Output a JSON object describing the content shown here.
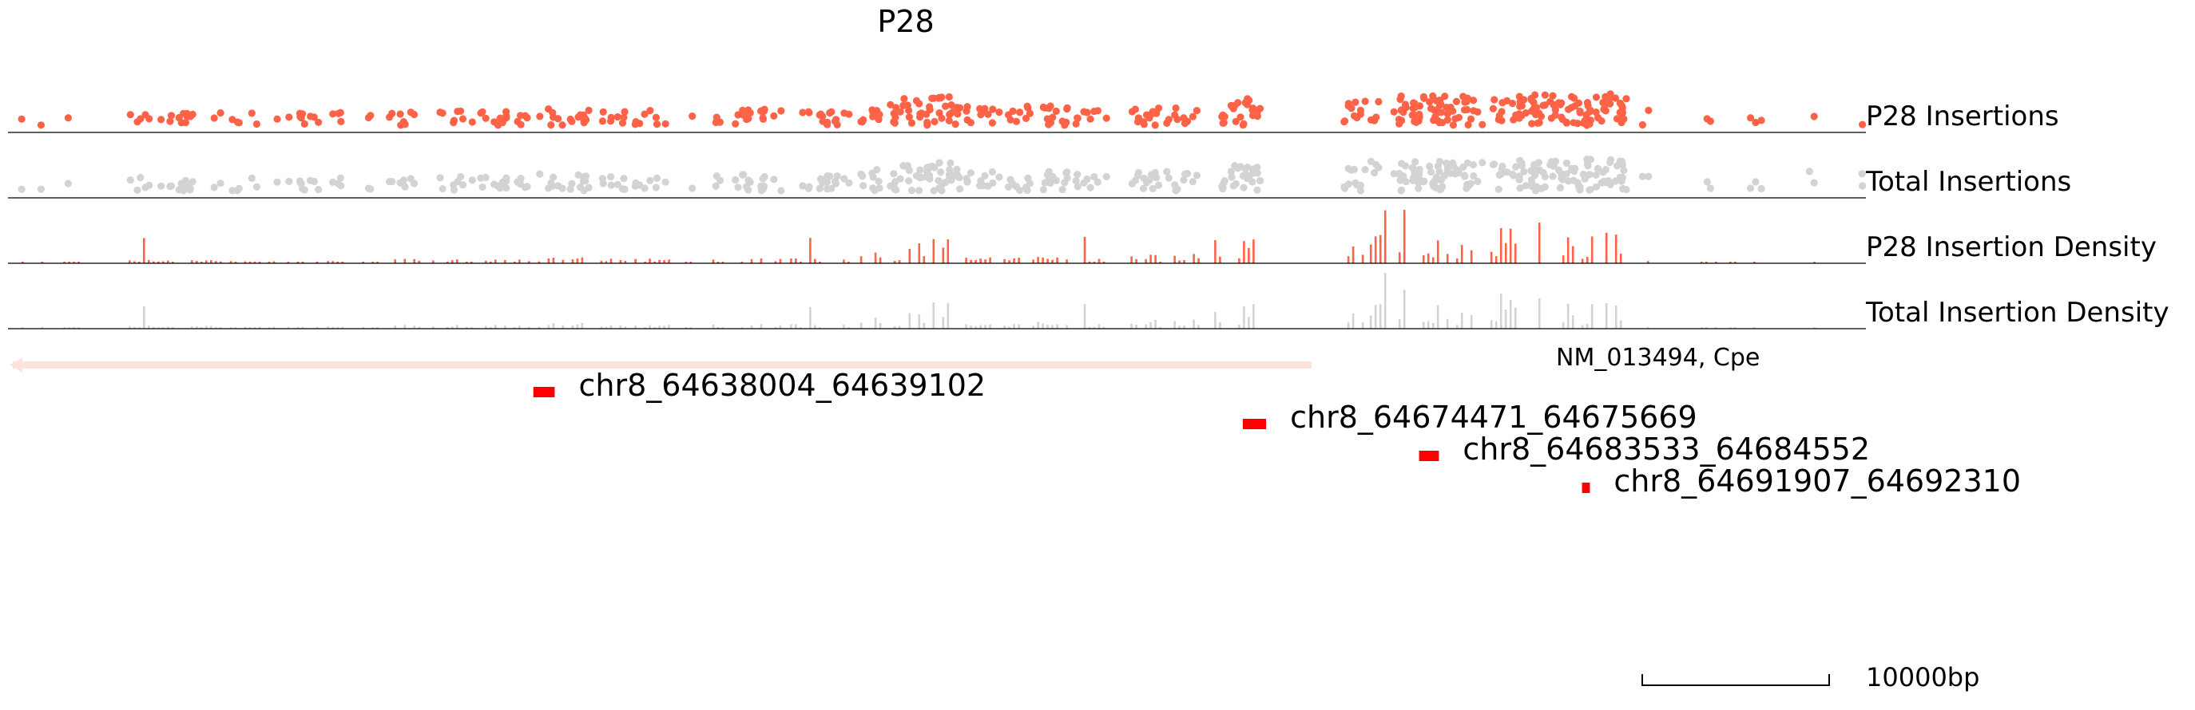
{
  "title": "P28",
  "colors": {
    "sample": "#ff6347",
    "total": "#d3d3d3",
    "gene": "#fde3dc",
    "peak": "#ff0000",
    "axis": "#000000"
  },
  "tracks": {
    "p28_insertions": "P28 Insertions",
    "total_insertions": "Total Insertions",
    "p28_density": "P28 Insertion Density",
    "total_density": "Total Insertion Density"
  },
  "gene_label": "NM_013494, Cpe",
  "scale_label": "10000bp",
  "chart_data": {
    "type": "genome-track",
    "region": {
      "chrom": "chr8",
      "start": 64611000,
      "end": 64706500
    },
    "gene": {
      "name": "NM_013494, Cpe",
      "strand": "-",
      "start": 64611000,
      "end": 64678000
    },
    "scale_bar_bp": 10000,
    "peaks": [
      {
        "label": "chr8_64638004_64639102",
        "start": 64638004,
        "end": 64639102
      },
      {
        "label": "chr8_64674471_64675669",
        "start": 64674471,
        "end": 64675669
      },
      {
        "label": "chr8_64683533_64684552",
        "start": 64683533,
        "end": 64684552
      },
      {
        "label": "chr8_64691907_64692310",
        "start": 64691907,
        "end": 64692310
      }
    ],
    "insertion_clusters": [
      {
        "start": 64611700,
        "end": 64611900,
        "density": 0.1
      },
      {
        "start": 64612700,
        "end": 64612900,
        "density": 0.1
      },
      {
        "start": 64613600,
        "end": 64614600,
        "density": 0.1
      },
      {
        "start": 64617200,
        "end": 64622000,
        "density": 0.3
      },
      {
        "start": 64622400,
        "end": 64627000,
        "density": 0.25
      },
      {
        "start": 64627400,
        "end": 64628500,
        "density": 0.25
      },
      {
        "start": 64629200,
        "end": 64630000,
        "density": 0.2
      },
      {
        "start": 64630600,
        "end": 64632200,
        "density": 0.35
      },
      {
        "start": 64632800,
        "end": 64637800,
        "density": 0.35
      },
      {
        "start": 64638000,
        "end": 64642800,
        "density": 0.4
      },
      {
        "start": 64643200,
        "end": 64645000,
        "density": 0.35
      },
      {
        "start": 64645800,
        "end": 64646200,
        "density": 0.2
      },
      {
        "start": 64647200,
        "end": 64650800,
        "density": 0.4
      },
      {
        "start": 64651200,
        "end": 64654300,
        "density": 0.4
      },
      {
        "start": 64654800,
        "end": 64656800,
        "density": 0.6
      },
      {
        "start": 64656800,
        "end": 64660000,
        "density": 0.9
      },
      {
        "start": 64660200,
        "end": 64665500,
        "density": 0.5
      },
      {
        "start": 64665800,
        "end": 64667500,
        "density": 0.4
      },
      {
        "start": 64668700,
        "end": 64672200,
        "density": 0.5
      },
      {
        "start": 64673000,
        "end": 64675400,
        "density": 0.8
      },
      {
        "start": 64679600,
        "end": 64680800,
        "density": 0.7
      },
      {
        "start": 64681000,
        "end": 64686800,
        "density": 0.9
      },
      {
        "start": 64687200,
        "end": 64694200,
        "density": 1.0
      },
      {
        "start": 64695000,
        "end": 64695400,
        "density": 0.4
      },
      {
        "start": 64698000,
        "end": 64701400,
        "density": 0.1
      },
      {
        "start": 64703800,
        "end": 64704000,
        "density": 0.1
      },
      {
        "start": 64705900,
        "end": 64706400,
        "density": 0.15
      }
    ],
    "total_only_points": [
      64703600,
      64706300
    ]
  }
}
